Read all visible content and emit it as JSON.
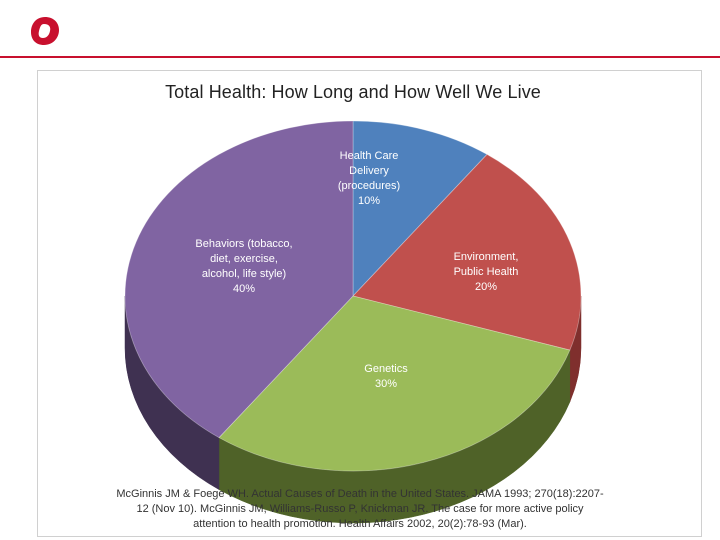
{
  "logo": {
    "icon": "letter-o-logo-icon",
    "color": "#c8102e"
  },
  "chart_data": {
    "type": "pie",
    "title": "Total Health:  How Long and How Well We Live",
    "slices": [
      {
        "lines": [
          "Health Care",
          "Delivery",
          "(procedures)"
        ],
        "percent_label": "10%",
        "value": 10,
        "color": "#4f81bd",
        "side": "#2c4d75"
      },
      {
        "lines": [
          "Environment,",
          "Public Health"
        ],
        "percent_label": "20%",
        "value": 20,
        "color": "#c0504d",
        "side": "#7f2f2d"
      },
      {
        "lines": [
          "Genetics"
        ],
        "percent_label": "30%",
        "value": 30,
        "color": "#9bbb59",
        "side": "#4f6228"
      },
      {
        "lines": [
          "Behaviors (tobacco,",
          "diet, exercise,",
          "alcohol, life style)"
        ],
        "percent_label": "40%",
        "value": 40,
        "color": "#8064a2",
        "side": "#3f3151"
      }
    ]
  },
  "citation": {
    "line1": "McGinnis JM & Foege WH. Actual Causes of Death in the United States. JAMA 1993; 270(18):2207-",
    "line2": "12 (Nov 10).  McGinnis JM, Williams-Russo P, Knickman JR. The case for more active policy",
    "line3": "attention to health promotion. Health Affairs 2002, 20(2):78-93 (Mar)."
  }
}
